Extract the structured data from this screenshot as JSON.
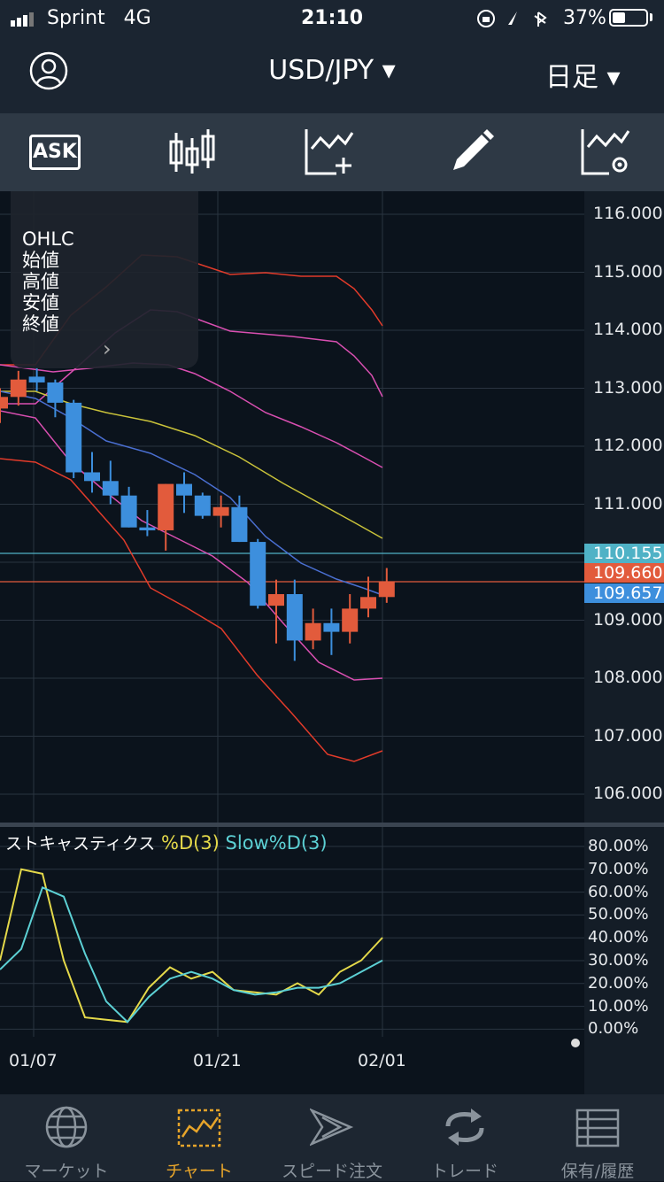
{
  "status_bar": {
    "carrier": "Sprint",
    "network": "4G",
    "time": "21:10",
    "battery": "37%"
  },
  "header": {
    "symbol": "USD/JPY ▾",
    "period": "日足 ▾"
  },
  "toolbar": {
    "ask_label": "ASK"
  },
  "ohlc_box": {
    "title": "OHLC",
    "open": "始値",
    "high": "高値",
    "low": "安値",
    "close": "終値",
    "chevron": "›"
  },
  "price_axis": [
    "116.000",
    "115.000",
    "114.000",
    "113.000",
    "112.000",
    "111.000",
    "110.000",
    "109.000",
    "108.000",
    "107.000",
    "106.000"
  ],
  "price_tags": {
    "line": "110.155",
    "bid": "109.660",
    "ask": "109.657"
  },
  "stochastic": {
    "title_name": "ストキャスティクス",
    "d_label": "%D(3)",
    "slow_label": "Slow%D(3)",
    "axis": [
      "80.00%",
      "70.00%",
      "60.00%",
      "50.00%",
      "40.00%",
      "30.00%",
      "20.00%",
      "10.00%",
      "0.00%"
    ]
  },
  "date_axis": [
    "01/07",
    "01/21",
    "02/01"
  ],
  "tabs": [
    {
      "label": "マーケット",
      "icon": "globe-icon"
    },
    {
      "label": "チャート",
      "icon": "chart-icon"
    },
    {
      "label": "スピード注文",
      "icon": "speed-order-icon"
    },
    {
      "label": "トレード",
      "icon": "trade-icon"
    },
    {
      "label": "保有/履歴",
      "icon": "history-icon"
    }
  ],
  "colors": {
    "up": "#e25b3c",
    "down": "#3d8fdd",
    "bb_outer": "#e23b2a",
    "bb_inner": "#d94fb1",
    "ma_yellow": "#c9c23a",
    "ma_blue": "#4a6fd1",
    "stoch_d": "#e4d94a",
    "stoch_slow": "#5cd0d4",
    "active_tab": "#e6a42a"
  },
  "chart_data": {
    "type": "candlestick",
    "ylim": [
      105.6,
      116.3
    ],
    "candles": [
      {
        "o": 112.65,
        "h": 113.0,
        "l": 112.4,
        "c": 112.85
      },
      {
        "o": 112.85,
        "h": 113.3,
        "l": 112.7,
        "c": 113.15
      },
      {
        "o": 113.2,
        "h": 113.35,
        "l": 112.95,
        "c": 113.1
      },
      {
        "o": 113.1,
        "h": 113.15,
        "l": 112.5,
        "c": 112.75
      },
      {
        "o": 112.75,
        "h": 112.8,
        "l": 111.45,
        "c": 111.55
      },
      {
        "o": 111.55,
        "h": 111.9,
        "l": 111.2,
        "c": 111.4
      },
      {
        "o": 111.4,
        "h": 111.75,
        "l": 111.0,
        "c": 111.15
      },
      {
        "o": 111.15,
        "h": 111.3,
        "l": 110.6,
        "c": 110.6
      },
      {
        "o": 110.6,
        "h": 110.9,
        "l": 110.45,
        "c": 110.55
      },
      {
        "o": 110.55,
        "h": 111.35,
        "l": 110.2,
        "c": 111.35
      },
      {
        "o": 111.35,
        "h": 111.55,
        "l": 110.85,
        "c": 111.15
      },
      {
        "o": 111.15,
        "h": 111.2,
        "l": 110.75,
        "c": 110.8
      },
      {
        "o": 110.8,
        "h": 111.15,
        "l": 110.6,
        "c": 110.95
      },
      {
        "o": 110.95,
        "h": 111.15,
        "l": 110.35,
        "c": 110.35
      },
      {
        "o": 110.35,
        "h": 110.4,
        "l": 109.2,
        "c": 109.25
      },
      {
        "o": 109.25,
        "h": 109.7,
        "l": 108.6,
        "c": 109.45
      },
      {
        "o": 109.45,
        "h": 109.7,
        "l": 108.3,
        "c": 108.65
      },
      {
        "o": 108.65,
        "h": 109.2,
        "l": 108.5,
        "c": 108.95
      },
      {
        "o": 108.95,
        "h": 109.2,
        "l": 108.4,
        "c": 108.8
      },
      {
        "o": 108.8,
        "h": 109.45,
        "l": 108.6,
        "c": 109.2
      },
      {
        "o": 109.2,
        "h": 109.75,
        "l": 109.05,
        "c": 109.4
      },
      {
        "o": 109.4,
        "h": 109.9,
        "l": 109.3,
        "c": 109.66
      }
    ],
    "stochastic": {
      "ylim": [
        0,
        80
      ],
      "d": [
        30,
        70,
        68,
        30,
        5,
        4,
        3,
        18,
        27,
        22,
        25,
        17,
        16,
        15,
        20,
        15,
        25,
        30,
        40
      ],
      "slow_d": [
        26,
        35,
        62,
        58,
        33,
        12,
        3,
        14,
        22,
        25,
        22,
        17,
        15,
        16,
        18,
        18,
        20,
        25,
        30
      ]
    }
  }
}
